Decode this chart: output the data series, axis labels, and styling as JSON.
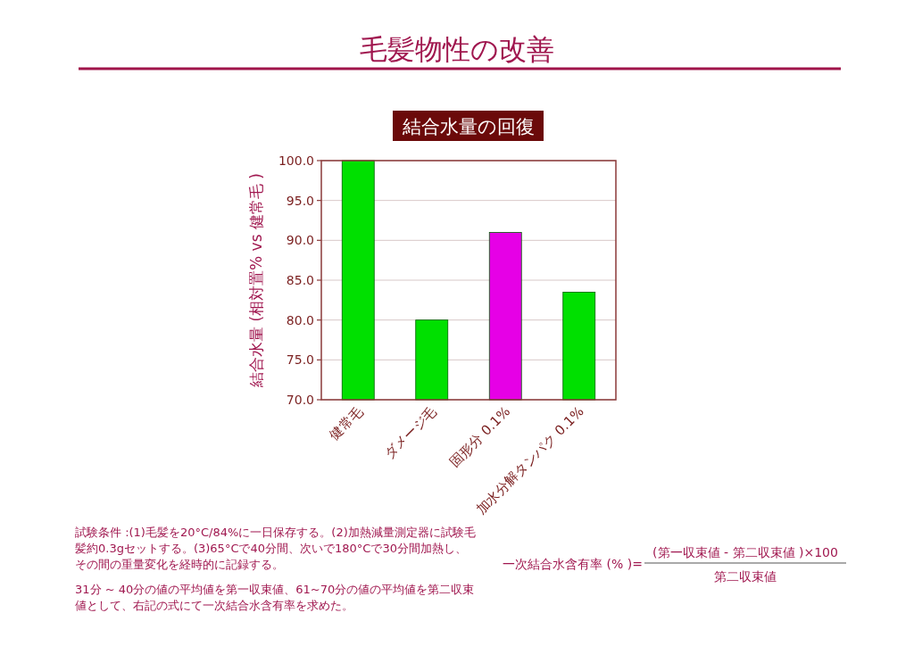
{
  "chart_data": {
    "type": "bar",
    "title": "毛髪物性の改善",
    "subtitle": "結合水量の回復",
    "ylabel": "結合水量 (相対置% vs 健常毛 )",
    "categories": [
      "健常毛",
      "ダメージ毛",
      "固形分 0.1%",
      "加水分解タンパク 0.1%"
    ],
    "values": [
      100.0,
      80.0,
      91.0,
      83.5
    ],
    "colors": [
      "#00e000",
      "#00e000",
      "#e600e6",
      "#00e000"
    ],
    "ylim": [
      70,
      100
    ],
    "yticks": [
      {
        "value": 70,
        "label": "70.0"
      },
      {
        "value": 75,
        "label": "75.0"
      },
      {
        "value": 80,
        "label": "80.0"
      },
      {
        "value": 85,
        "label": "85.0"
      },
      {
        "value": 90,
        "label": "90.0"
      },
      {
        "value": 95,
        "label": "95.0"
      },
      {
        "value": 100,
        "label": "100.0"
      }
    ],
    "grid": "y",
    "annotations": [
      "試験条件 :(1)毛髪を20°C/84%に一日保存する。(2)加熱減量測定器に試験毛髪約0.3gセットする。(3)65°Cで40分間、次いで180°Cで30分間加熱し、その間の重量変化を経時的に記録する。",
      "31分 ~ 40分の値の平均値を第一収束値、61~70分の値の平均値を第二収束値として、右記の式にて一次結合水含有率を求めた。",
      "一次結合水含有率 (% )=",
      "(第一収束値 - 第二収束値 )×100",
      "第二収束値"
    ]
  }
}
